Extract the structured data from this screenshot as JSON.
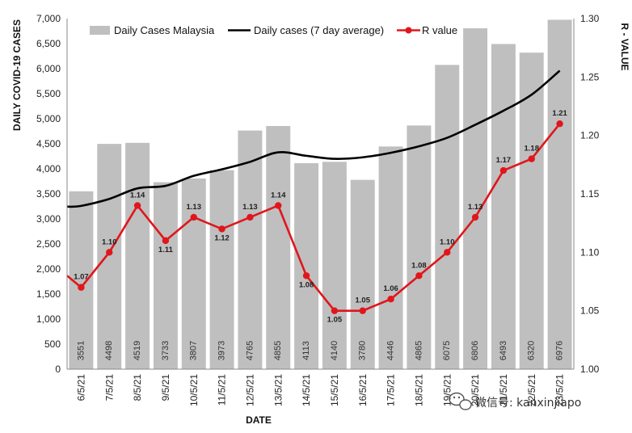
{
  "chart_data": {
    "type": "bar",
    "categories": [
      "6/5/21",
      "7/5/21",
      "8/5/21",
      "9/5/21",
      "10/5/21",
      "11/5/21",
      "12/5/21",
      "13/5/21",
      "14/5/21",
      "15/5/21",
      "16/5/21",
      "17/5/21",
      "18/5/21",
      "19/5/21",
      "20/5/21",
      "21/5/21",
      "22/5/21",
      "23/5/21"
    ],
    "series": [
      {
        "name": "Daily Cases Malaysia",
        "kind": "bar",
        "axis": "left",
        "color": "#bfbfbf",
        "values": [
          3551,
          4498,
          4519,
          3733,
          3807,
          3973,
          4765,
          4855,
          4113,
          4140,
          3780,
          4446,
          4865,
          6075,
          6806,
          6493,
          6320,
          6976
        ]
      },
      {
        "name": "Daily cases (7 day average)",
        "kind": "line",
        "axis": "left",
        "color": "#000000",
        "values": [
          3260,
          3400,
          3610,
          3660,
          3860,
          3990,
          4140,
          4330,
          4260,
          4200,
          4230,
          4320,
          4450,
          4620,
          4880,
          5160,
          5480,
          5960
        ]
      },
      {
        "name": "R value",
        "kind": "line-markers",
        "axis": "right",
        "color": "#e0161c",
        "values": [
          1.07,
          1.1,
          1.14,
          1.11,
          1.13,
          1.12,
          1.13,
          1.14,
          1.08,
          1.05,
          1.05,
          1.06,
          1.08,
          1.1,
          1.13,
          1.17,
          1.18,
          1.21
        ],
        "labels": [
          "1.07",
          "1.10",
          "1.14",
          "1.11",
          "1.13",
          "1.12",
          "1.13",
          "1.14",
          "1.08",
          "1.05",
          "1.05",
          "1.06",
          "1.08",
          "1.10",
          "1.13",
          "1.17",
          "1.18",
          "1.21"
        ]
      }
    ],
    "bar_value_labels": [
      "3551",
      "4498",
      "4519",
      "3733",
      "3807",
      "3973",
      "4765",
      "4855",
      "4113",
      "4140",
      "3780",
      "4446",
      "4865",
      "6075",
      "6806",
      "6493",
      "6320",
      "6976"
    ],
    "ylim": [
      0,
      7000
    ],
    "yticks": [
      "0",
      "500",
      "1,000",
      "1,500",
      "2,000",
      "2,500",
      "3,000",
      "3,500",
      "4,000",
      "4,500",
      "5,000",
      "5,500",
      "6,000",
      "6,500",
      "7,000"
    ],
    "y2lim": [
      1.0,
      1.3
    ],
    "y2ticks": [
      "1.00",
      "1.05",
      "1.10",
      "1.15",
      "1.20",
      "1.25",
      "1.30"
    ],
    "xlabel": "DATE",
    "ylabel": "DAILY COVID-19 CASES",
    "y2label": "R - VALUE",
    "legend": "top",
    "grid": false
  },
  "watermark": {
    "icon": "wechat-icon",
    "text": "微信号: kanxinjiapo"
  }
}
